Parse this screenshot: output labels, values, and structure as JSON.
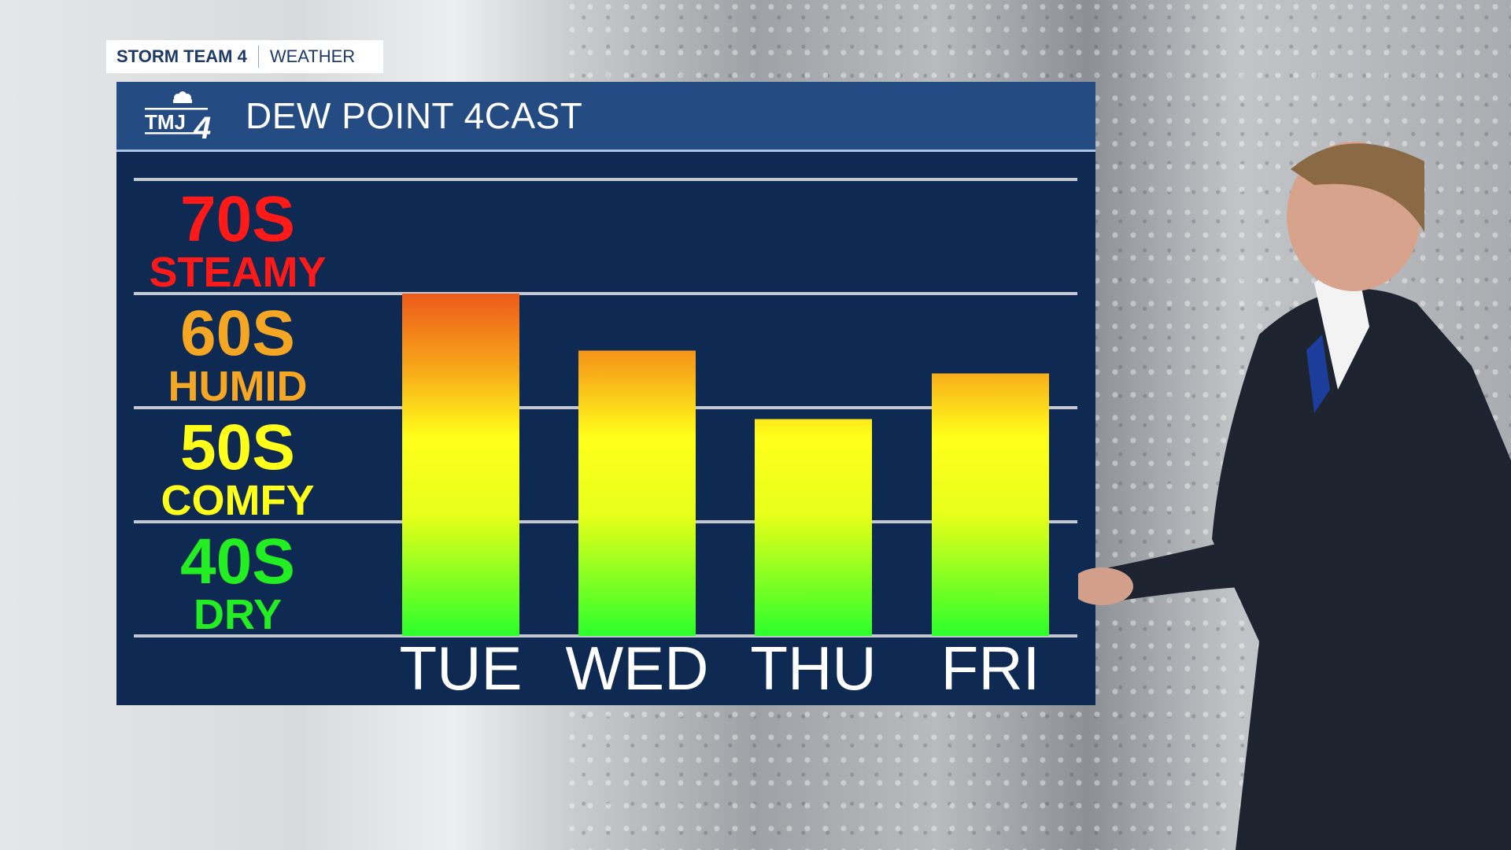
{
  "brand": {
    "station": "STORM TEAM 4",
    "section": "WEATHER"
  },
  "header": {
    "logo": "TMJ4",
    "title": "DEW POINT 4CAST"
  },
  "chart_data": {
    "type": "bar",
    "categories": [
      "TUE",
      "WED",
      "THU",
      "FRI"
    ],
    "values": [
      70,
      65,
      59,
      63
    ],
    "ylim": [
      40,
      80
    ],
    "grid": true,
    "bands": [
      {
        "range": "70S",
        "label": "STEAMY",
        "color": "#ff1a1a"
      },
      {
        "range": "60S",
        "label": "HUMID",
        "color": "#f5a623"
      },
      {
        "range": "50S",
        "label": "COMFY",
        "color": "#ffff1a"
      },
      {
        "range": "40S",
        "label": "DRY",
        "color": "#22ee22"
      }
    ],
    "bar_gradient": [
      "#ee5a1a",
      "#f7a81a",
      "#ffff1a",
      "#e6ff1a",
      "#2bff2b"
    ]
  }
}
